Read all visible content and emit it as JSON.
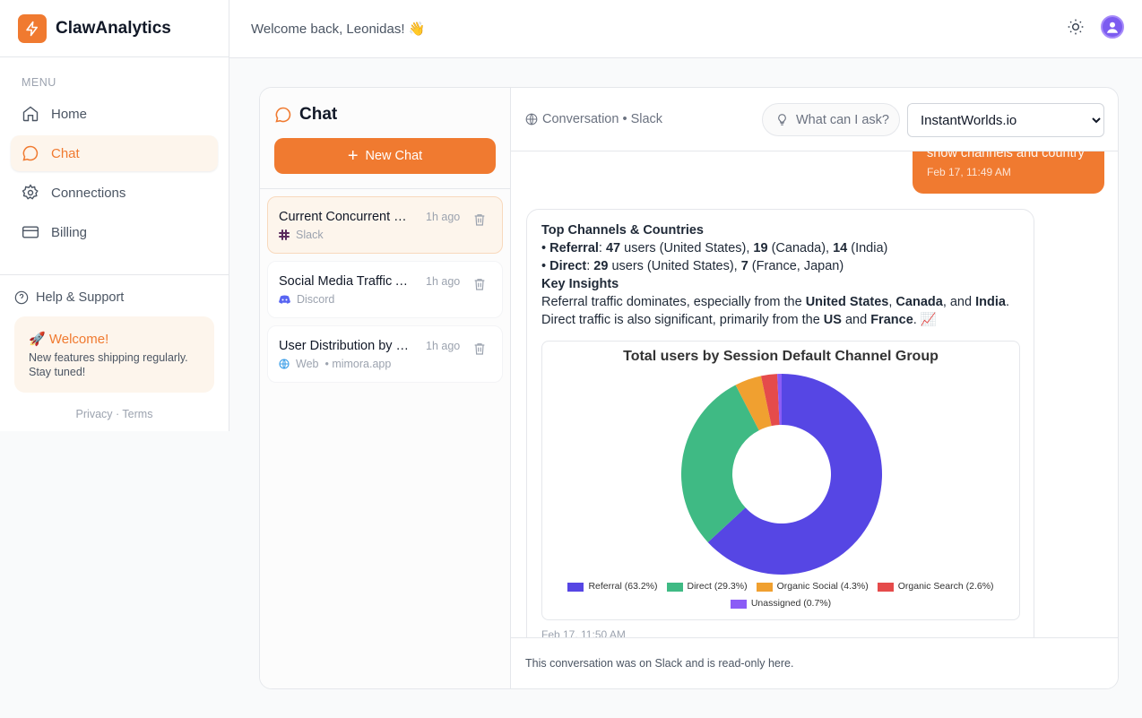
{
  "app": {
    "name": "ClawAnalytics"
  },
  "sidebar": {
    "menu_label": "MENU",
    "items": [
      {
        "label": "Home",
        "icon": "home-icon"
      },
      {
        "label": "Chat",
        "icon": "chat-icon",
        "active": true
      },
      {
        "label": "Connections",
        "icon": "gear-icon"
      },
      {
        "label": "Billing",
        "icon": "credit-card-icon"
      }
    ],
    "help": "Help & Support",
    "welcome": {
      "title": "🚀 Welcome!",
      "text": "New features shipping regularly. Stay tuned!"
    },
    "privacy": "Privacy",
    "terms": "Terms"
  },
  "header": {
    "greeting": "Welcome back, Leonidas! 👋"
  },
  "chat": {
    "title": "Chat",
    "new_chat": "New Chat",
    "conversations": [
      {
        "title": "Current Concurrent Users",
        "time": "1h ago",
        "source": "Slack",
        "active": true
      },
      {
        "title": "Social Media Traffic Analysis",
        "time": "1h ago",
        "source": "Discord"
      },
      {
        "title": "User Distribution by Country",
        "time": "1h ago",
        "source": "Web",
        "site": "• mimora.app"
      }
    ]
  },
  "conversation": {
    "breadcrumb": "Conversation • Slack",
    "ask_label": "What can I ask?",
    "site_select": "InstantWorlds.io",
    "user_message": {
      "text": "show channels and country",
      "time": "Feb 17, 11:49 AM"
    },
    "assistant": {
      "heading": "Top Channels & Countries",
      "line1": {
        "label": "Referral",
        "n1": "47",
        "t1": " users (United States), ",
        "n2": "19",
        "t2": " (Canada), ",
        "n3": "14",
        "t3": " (India)"
      },
      "line2": {
        "label": "Direct",
        "n1": "29",
        "t1": " users (United States), ",
        "n2": "7",
        "t2": " (France, Japan)"
      },
      "insights_heading": "Key Insights",
      "ins1a": "Referral traffic dominates, especially from the ",
      "us": "United States",
      "c1": ", ",
      "ca": "Canada",
      "c2": ", and ",
      "in": "India",
      "c3": ".",
      "ins2a": "Direct traffic is also significant, primarily from the ",
      "us2": "US",
      "and": " and ",
      "fr": "France",
      "end": ". 📈",
      "time": "Feb 17, 11:50 AM"
    },
    "footer": "This conversation was on Slack and is read-only here."
  },
  "chart_data": {
    "type": "pie",
    "donut": true,
    "title": "Total users by Session Default Channel Group",
    "legend_position": "bottom",
    "categories": [
      "Referral",
      "Direct",
      "Organic Social",
      "Organic Search",
      "Unassigned"
    ],
    "values": [
      63.2,
      29.3,
      4.3,
      2.6,
      0.7
    ],
    "legend_labels": [
      "Referral (63.2%)",
      "Direct (29.3%)",
      "Organic Social (4.3%)",
      "Organic Search (2.6%)",
      "Unassigned (0.7%)"
    ],
    "colors": [
      "#5646e4",
      "#3fba84",
      "#f0a030",
      "#e54b4b",
      "#8b5cf6"
    ]
  }
}
